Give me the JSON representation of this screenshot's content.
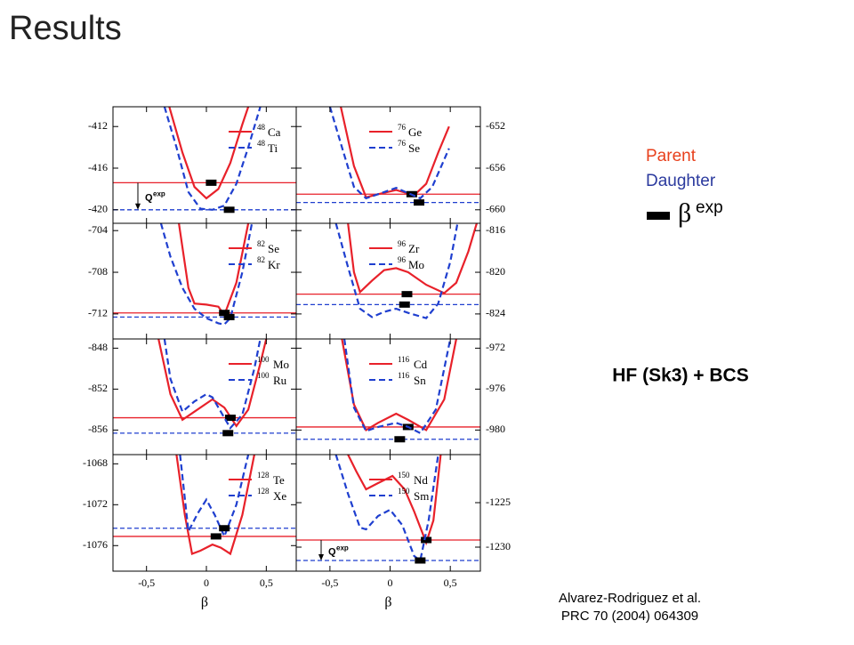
{
  "title": "Results",
  "legend": {
    "parent": "Parent",
    "daughter": "Daughter",
    "beta_symbol": "β",
    "beta_sup": "exp"
  },
  "method": "HF (Sk3) + BCS",
  "citation": [
    "Alvarez-Rodriguez et al.",
    "PRC 70 (2004) 064309"
  ],
  "chart_data": [
    {
      "type": "line",
      "xlim": [
        -0.78,
        0.75
      ],
      "ylim": [
        -421.3,
        -410.1
      ],
      "yticks": [
        -412,
        -416,
        -420
      ],
      "xticks": [
        -0.5,
        0,
        0.5
      ],
      "annotation": "Q",
      "annotation_sup": "exp",
      "series": [
        {
          "isotope": "48",
          "name": "Ca",
          "color": "#e8212a",
          "linestyle": "solid",
          "x": [
            -0.31,
            -0.2,
            -0.1,
            0,
            0.1,
            0.2,
            0.3,
            0.35
          ],
          "values": [
            -410.1,
            -414.5,
            -417.8,
            -418.9,
            -418,
            -415.5,
            -411.8,
            -410.1
          ],
          "level": -417.4,
          "beta_exp": 0.04
        },
        {
          "isotope": "48",
          "name": "Ti",
          "color": "#1f3fcf",
          "linestyle": "dashed",
          "x": [
            -0.35,
            -0.25,
            -0.15,
            -0.05,
            0.05,
            0.15,
            0.25,
            0.35,
            0.45
          ],
          "values": [
            -410.1,
            -414,
            -418.3,
            -419.9,
            -420,
            -419.6,
            -417.5,
            -414,
            -410.1
          ],
          "level": -420,
          "beta_exp": 0.19
        }
      ]
    },
    {
      "type": "line",
      "xlim": [
        -0.78,
        0.75
      ],
      "ylim": [
        -661.3,
        -650.1
      ],
      "yticks": [
        -652,
        -656,
        -660
      ],
      "xticks": [
        -0.5,
        0,
        0.5
      ],
      "series": [
        {
          "isotope": "76",
          "name": "Ge",
          "color": "#e8212a",
          "linestyle": "solid",
          "x": [
            -0.41,
            -0.3,
            -0.2,
            -0.1,
            0.05,
            0.2,
            0.3,
            0.4,
            0.49
          ],
          "values": [
            -650.1,
            -655.8,
            -658.8,
            -658.5,
            -658.1,
            -658.6,
            -657.5,
            -654.5,
            -652
          ],
          "level": -658.5,
          "beta_exp": 0.18
        },
        {
          "isotope": "76",
          "name": "Se",
          "color": "#1f3fcf",
          "linestyle": "dashed",
          "x": [
            -0.5,
            -0.4,
            -0.3,
            -0.2,
            -0.05,
            0.05,
            0.15,
            0.25,
            0.35,
            0.49
          ],
          "values": [
            -650.1,
            -654,
            -657.8,
            -658.9,
            -658.3,
            -657.9,
            -658.4,
            -658.9,
            -657.8,
            -654.1
          ],
          "level": -659.3,
          "beta_exp": 0.24
        }
      ]
    },
    {
      "type": "line",
      "xlim": [
        -0.78,
        0.75
      ],
      "ylim": [
        -714.4,
        -703.3
      ],
      "yticks": [
        -704,
        -708,
        -712
      ],
      "xticks": [
        -0.5,
        0,
        0.5
      ],
      "series": [
        {
          "isotope": "82",
          "name": "Se",
          "color": "#e8212a",
          "linestyle": "solid",
          "x": [
            -0.23,
            -0.15,
            -0.1,
            0,
            0.1,
            0.15,
            0.25,
            0.35
          ],
          "values": [
            -703.3,
            -709.5,
            -711,
            -711.1,
            -711.3,
            -712.1,
            -709,
            -703.3
          ],
          "level": -711.9,
          "beta_exp": 0.15
        },
        {
          "isotope": "82",
          "name": "Kr",
          "color": "#1f3fcf",
          "linestyle": "dashed",
          "x": [
            -0.38,
            -0.3,
            -0.2,
            -0.1,
            0,
            0.1,
            0.15,
            0.2,
            0.3,
            0.38
          ],
          "values": [
            -703.3,
            -706.5,
            -709.5,
            -711.5,
            -712.4,
            -712.9,
            -713,
            -712.4,
            -708,
            -703.3
          ],
          "level": -712.3,
          "beta_exp": 0.19
        }
      ]
    },
    {
      "type": "line",
      "xlim": [
        -0.78,
        0.75
      ],
      "ylim": [
        -826.4,
        -815.3
      ],
      "yticks": [
        -816,
        -820,
        -824
      ],
      "xticks": [
        -0.5,
        0,
        0.5
      ],
      "series": [
        {
          "isotope": "96",
          "name": "Zr",
          "color": "#e8212a",
          "linestyle": "solid",
          "x": [
            -0.35,
            -0.3,
            -0.25,
            -0.15,
            -0.05,
            0.05,
            0.15,
            0.3,
            0.45,
            0.55,
            0.65,
            0.72
          ],
          "values": [
            -815.3,
            -820,
            -821.9,
            -820.8,
            -819.8,
            -819.6,
            -820,
            -821.2,
            -822,
            -821,
            -818,
            -815.3
          ],
          "level": -822.1,
          "beta_exp": 0.14
        },
        {
          "isotope": "96",
          "name": "Mo",
          "color": "#1f3fcf",
          "linestyle": "dashed",
          "x": [
            -0.45,
            -0.35,
            -0.25,
            -0.15,
            -0.05,
            0.05,
            0.15,
            0.3,
            0.4,
            0.5,
            0.56
          ],
          "values": [
            -815.3,
            -819.5,
            -823.5,
            -824.3,
            -823.8,
            -823.5,
            -823.9,
            -824.4,
            -823,
            -819,
            -815.3
          ],
          "level": -823.1,
          "beta_exp": 0.12
        }
      ]
    },
    {
      "type": "line",
      "xlim": [
        -0.78,
        0.75
      ],
      "ylim": [
        -858.4,
        -847.1
      ],
      "yticks": [
        -848,
        -852,
        -856
      ],
      "xticks": [
        -0.5,
        0,
        0.5
      ],
      "series": [
        {
          "isotope": "100",
          "name": "Mo",
          "color": "#e8212a",
          "linestyle": "solid",
          "x": [
            -0.4,
            -0.3,
            -0.2,
            -0.1,
            0.05,
            0.15,
            0.25,
            0.35,
            0.45,
            0.5
          ],
          "values": [
            -847.1,
            -852.5,
            -855,
            -854.2,
            -853,
            -853.8,
            -855.6,
            -854,
            -849.5,
            -847.1
          ],
          "level": -854.8,
          "beta_exp": 0.2
        },
        {
          "isotope": "100",
          "name": "Ru",
          "color": "#1f3fcf",
          "linestyle": "dashed",
          "x": [
            -0.35,
            -0.3,
            -0.2,
            -0.1,
            0,
            0.05,
            0.1,
            0.2,
            0.3,
            0.4,
            0.45
          ],
          "values": [
            -847.1,
            -851,
            -854.2,
            -853.2,
            -852.5,
            -852.8,
            -853.8,
            -855.8,
            -854.5,
            -850,
            -847.1
          ],
          "level": -856.3,
          "beta_exp": 0.18
        }
      ]
    },
    {
      "type": "line",
      "xlim": [
        -0.78,
        0.75
      ],
      "ylim": [
        -982.4,
        -971.1
      ],
      "yticks": [
        -972,
        -976,
        -980
      ],
      "xticks": [
        -0.5,
        0,
        0.5
      ],
      "series": [
        {
          "isotope": "116",
          "name": "Cd",
          "color": "#e8212a",
          "linestyle": "solid",
          "x": [
            -0.4,
            -0.3,
            -0.2,
            -0.1,
            0.05,
            0.15,
            0.3,
            0.45,
            0.55
          ],
          "values": [
            -971.1,
            -977.5,
            -980,
            -979.3,
            -978.4,
            -979,
            -980,
            -977,
            -971.1
          ],
          "level": -979.7,
          "beta_exp": 0.15
        },
        {
          "isotope": "116",
          "name": "Sn",
          "color": "#1f3fcf",
          "linestyle": "dashed",
          "x": [
            -0.38,
            -0.3,
            -0.2,
            -0.1,
            0.05,
            0.15,
            0.25,
            0.38,
            0.5
          ],
          "values": [
            -971.1,
            -977.8,
            -980.1,
            -979.7,
            -979.3,
            -979.7,
            -980.3,
            -978,
            -971.1
          ],
          "level": -980.9,
          "beta_exp": 0.08
        }
      ]
    },
    {
      "type": "line",
      "xlim": [
        -0.78,
        0.75
      ],
      "ylim": [
        -1078.5,
        -1067.1
      ],
      "yticks": [
        -1068,
        -1072,
        -1076
      ],
      "xticks": [
        {
          "value": -0.5,
          "label": "-0,5"
        },
        0,
        {
          "value": 0.5,
          "label": "0,5"
        }
      ],
      "xlabel": "β",
      "series": [
        {
          "isotope": "128",
          "name": "Te",
          "color": "#e8212a",
          "linestyle": "solid",
          "x": [
            -0.25,
            -0.18,
            -0.12,
            -0.05,
            0.05,
            0.12,
            0.2,
            0.3,
            0.4
          ],
          "values": [
            -1067.1,
            -1073,
            -1076.8,
            -1076.5,
            -1075.9,
            -1076.2,
            -1076.8,
            -1073,
            -1067.1
          ],
          "level": -1075.1,
          "beta_exp": 0.08
        },
        {
          "isotope": "128",
          "name": "Xe",
          "color": "#1f3fcf",
          "linestyle": "dashed",
          "x": [
            -0.22,
            -0.15,
            -0.07,
            0,
            0.07,
            0.15,
            0.25,
            0.35
          ],
          "values": [
            -1067.1,
            -1074.6,
            -1072.8,
            -1071.5,
            -1073,
            -1075.1,
            -1072,
            -1067.1
          ],
          "level": -1074.3,
          "beta_exp": 0.15
        }
      ]
    },
    {
      "type": "line",
      "xlim": [
        -0.78,
        0.75
      ],
      "ylim": [
        -1232.7,
        -1219.6
      ],
      "yticks": [
        -1225,
        -1230
      ],
      "xticks": [
        {
          "value": -0.5,
          "label": "-0,5"
        },
        0,
        {
          "value": 0.5,
          "label": "0,5"
        }
      ],
      "xlabel": "β",
      "annotation": "Q",
      "annotation_sup": "exp",
      "series": [
        {
          "isotope": "150",
          "name": "Nd",
          "color": "#e8212a",
          "linestyle": "solid",
          "x": [
            -0.35,
            -0.28,
            -0.2,
            -0.1,
            0.02,
            0.12,
            0.2,
            0.3,
            0.36,
            0.42
          ],
          "values": [
            -1219.6,
            -1221.5,
            -1223.5,
            -1222.8,
            -1222,
            -1223.5,
            -1226,
            -1229.5,
            -1227,
            -1219.6
          ],
          "level": -1229.2,
          "beta_exp": 0.3
        },
        {
          "isotope": "150",
          "name": "Sm",
          "color": "#1f3fcf",
          "linestyle": "dashed",
          "x": [
            -0.45,
            -0.35,
            -0.25,
            -0.2,
            -0.1,
            0,
            0.1,
            0.2,
            0.25,
            0.32,
            0.4
          ],
          "values": [
            -1219.6,
            -1224,
            -1227.8,
            -1228,
            -1226.5,
            -1225.8,
            -1227.5,
            -1231,
            -1231.5,
            -1227,
            -1219.6
          ],
          "level": -1231.5,
          "beta_exp": 0.25
        }
      ]
    }
  ]
}
